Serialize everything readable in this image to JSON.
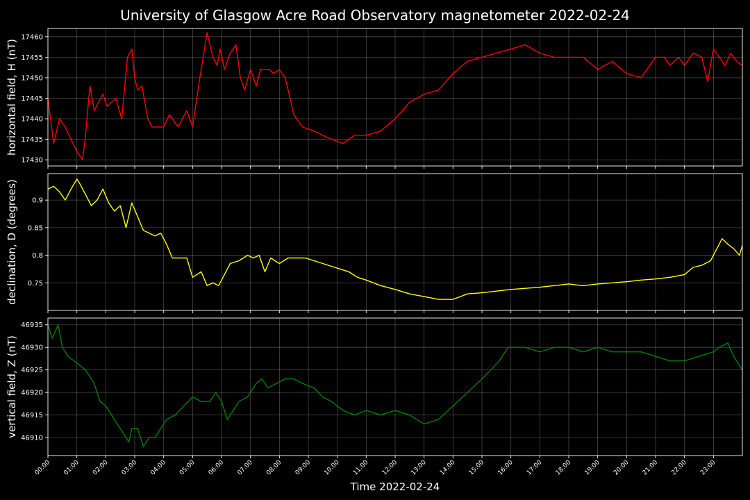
{
  "chart_data": {
    "type": "line",
    "title": "University of Glasgow Acre Road Observatory magnetometer 2022-02-24",
    "xlabel": "Time 2022-02-24",
    "x_ticks": [
      "00:00",
      "01:00",
      "02:00",
      "03:00",
      "04:00",
      "05:00",
      "06:00",
      "07:00",
      "08:00",
      "09:00",
      "10:00",
      "11:00",
      "12:00",
      "13:00",
      "14:00",
      "15:00",
      "16:00",
      "17:00",
      "18:00",
      "19:00",
      "20:00",
      "21:00",
      "22:00",
      "23:00"
    ],
    "xlim": [
      0,
      24
    ],
    "x_unit": "hours",
    "grid": true,
    "panels": [
      {
        "ylabel": "horizontal field, H (nT)",
        "color": "#ff0000",
        "ylim": [
          17428.5,
          17462
        ],
        "yticks": [
          17430,
          17435,
          17440,
          17445,
          17450,
          17455,
          17460
        ],
        "series": {
          "x": [
            0,
            0.2,
            0.4,
            0.6,
            0.8,
            1.0,
            1.2,
            1.3,
            1.45,
            1.6,
            1.75,
            1.9,
            2.05,
            2.2,
            2.35,
            2.55,
            2.75,
            2.9,
            3.0,
            3.1,
            3.25,
            3.45,
            3.6,
            3.8,
            4.0,
            4.2,
            4.5,
            4.8,
            5.0,
            5.25,
            5.5,
            5.7,
            5.85,
            5.95,
            6.1,
            6.3,
            6.5,
            6.65,
            6.8,
            7.0,
            7.2,
            7.35,
            7.5,
            7.65,
            7.8,
            8.0,
            8.2,
            8.5,
            8.8,
            9.2,
            9.5,
            9.8,
            10.2,
            10.6,
            11.0,
            11.5,
            12.0,
            12.5,
            13.0,
            13.5,
            14.0,
            14.5,
            15.0,
            15.5,
            16.0,
            16.5,
            17.0,
            17.5,
            18.0,
            18.5,
            19.0,
            19.5,
            20.0,
            20.5,
            21.0,
            21.3,
            21.5,
            21.8,
            22.0,
            22.3,
            22.6,
            22.8,
            23.0,
            23.2,
            23.4,
            23.6,
            23.8,
            24.0
          ],
          "values": [
            17445,
            17434,
            17440,
            17438,
            17435,
            17432,
            17430,
            17436,
            17448,
            17442,
            17444,
            17446,
            17443,
            17444,
            17445,
            17440,
            17455,
            17457,
            17450,
            17447,
            17448,
            17440,
            17438,
            17438,
            17438,
            17441,
            17438,
            17442,
            17438,
            17450,
            17461,
            17455,
            17453,
            17457,
            17452,
            17456,
            17458,
            17450,
            17447,
            17452,
            17448,
            17452,
            17452,
            17452,
            17451,
            17452,
            17450,
            17441,
            17438,
            17437,
            17436,
            17435,
            17434,
            17436,
            17436,
            17437,
            17440,
            17444,
            17446,
            17447,
            17451,
            17454,
            17455,
            17456,
            17457,
            17458,
            17456,
            17455,
            17455,
            17455,
            17452,
            17454,
            17451,
            17450,
            17455,
            17455,
            17453,
            17455,
            17453,
            17456,
            17455,
            17449,
            17457,
            17455,
            17453,
            17456,
            17454,
            17453
          ]
        }
      },
      {
        "ylabel": "declination, D (degrees)",
        "color": "#ffff00",
        "ylim": [
          0.7,
          0.948
        ],
        "yticks": [
          0.75,
          0.8,
          0.85,
          0.9
        ],
        "series": {
          "x": [
            0,
            0.2,
            0.4,
            0.6,
            0.8,
            1.0,
            1.1,
            1.3,
            1.5,
            1.7,
            1.9,
            2.1,
            2.3,
            2.5,
            2.7,
            2.9,
            3.1,
            3.3,
            3.5,
            3.7,
            3.9,
            4.1,
            4.3,
            4.5,
            4.8,
            5.0,
            5.3,
            5.5,
            5.7,
            5.9,
            6.1,
            6.3,
            6.6,
            6.9,
            7.1,
            7.3,
            7.5,
            7.7,
            8.0,
            8.3,
            8.6,
            8.9,
            9.2,
            9.5,
            9.8,
            10.1,
            10.4,
            10.7,
            11.0,
            11.5,
            12.0,
            12.5,
            13.0,
            13.5,
            14.0,
            14.5,
            15.0,
            15.5,
            16.0,
            16.5,
            17.0,
            17.5,
            18.0,
            18.5,
            19.0,
            19.5,
            20.0,
            20.5,
            21.0,
            21.5,
            22.0,
            22.3,
            22.6,
            22.9,
            23.1,
            23.3,
            23.5,
            23.7,
            23.9,
            24.0
          ],
          "values": [
            0.92,
            0.925,
            0.915,
            0.9,
            0.92,
            0.938,
            0.93,
            0.91,
            0.89,
            0.9,
            0.92,
            0.895,
            0.88,
            0.89,
            0.85,
            0.895,
            0.87,
            0.845,
            0.84,
            0.835,
            0.84,
            0.82,
            0.795,
            0.795,
            0.795,
            0.76,
            0.77,
            0.745,
            0.75,
            0.745,
            0.765,
            0.785,
            0.79,
            0.8,
            0.795,
            0.8,
            0.77,
            0.795,
            0.785,
            0.795,
            0.795,
            0.795,
            0.79,
            0.785,
            0.78,
            0.775,
            0.77,
            0.76,
            0.755,
            0.745,
            0.738,
            0.73,
            0.725,
            0.72,
            0.72,
            0.73,
            0.732,
            0.735,
            0.738,
            0.74,
            0.742,
            0.745,
            0.748,
            0.745,
            0.748,
            0.75,
            0.752,
            0.755,
            0.757,
            0.76,
            0.765,
            0.778,
            0.782,
            0.79,
            0.81,
            0.83,
            0.82,
            0.812,
            0.8,
            0.818
          ]
        }
      },
      {
        "ylabel": "vertical field, Z (nT)",
        "color": "#008000",
        "ylim": [
          46906,
          46936.5
        ],
        "yticks": [
          46910,
          46915,
          46920,
          46925,
          46930,
          46935
        ],
        "series": {
          "x": [
            0,
            0.15,
            0.35,
            0.5,
            0.7,
            0.9,
            1.1,
            1.3,
            1.6,
            1.8,
            2.0,
            2.2,
            2.4,
            2.6,
            2.8,
            2.9,
            3.1,
            3.3,
            3.5,
            3.7,
            3.9,
            4.1,
            4.4,
            4.7,
            5.0,
            5.3,
            5.6,
            5.8,
            6.0,
            6.2,
            6.4,
            6.6,
            6.9,
            7.2,
            7.4,
            7.6,
            7.9,
            8.2,
            8.5,
            8.8,
            9.2,
            9.5,
            9.8,
            10.2,
            10.6,
            11.0,
            11.5,
            12.0,
            12.5,
            13.0,
            13.5,
            14.0,
            14.5,
            15.0,
            15.3,
            15.6,
            15.9,
            16.2,
            16.5,
            17.0,
            17.5,
            18.0,
            18.5,
            19.0,
            19.5,
            20.0,
            20.5,
            21.0,
            21.5,
            22.0,
            22.5,
            23.0,
            23.2,
            23.5,
            23.7,
            23.9,
            24.0
          ],
          "values": [
            46935,
            46932,
            46935,
            46930,
            46928,
            46927,
            46926,
            46925,
            46922,
            46918,
            46917,
            46915,
            46913,
            46911,
            46909,
            46912,
            46912,
            46908,
            46910,
            46910,
            46912,
            46914,
            46915,
            46917,
            46919,
            46918,
            46918,
            46920,
            46918,
            46914,
            46916,
            46918,
            46919,
            46922,
            46923,
            46921,
            46922,
            46923,
            46923,
            46922,
            46921,
            46919,
            46918,
            46916,
            46915,
            46916,
            46915,
            46916,
            46915,
            46913,
            46914,
            46917,
            46920,
            46923,
            46925,
            46927,
            46930,
            46930,
            46930,
            46929,
            46930,
            46930,
            46929,
            46930,
            46929,
            46929,
            46929,
            46928,
            46927,
            46927,
            46928,
            46929,
            46930,
            46931,
            46928,
            46926,
            46925
          ]
        }
      }
    ]
  }
}
